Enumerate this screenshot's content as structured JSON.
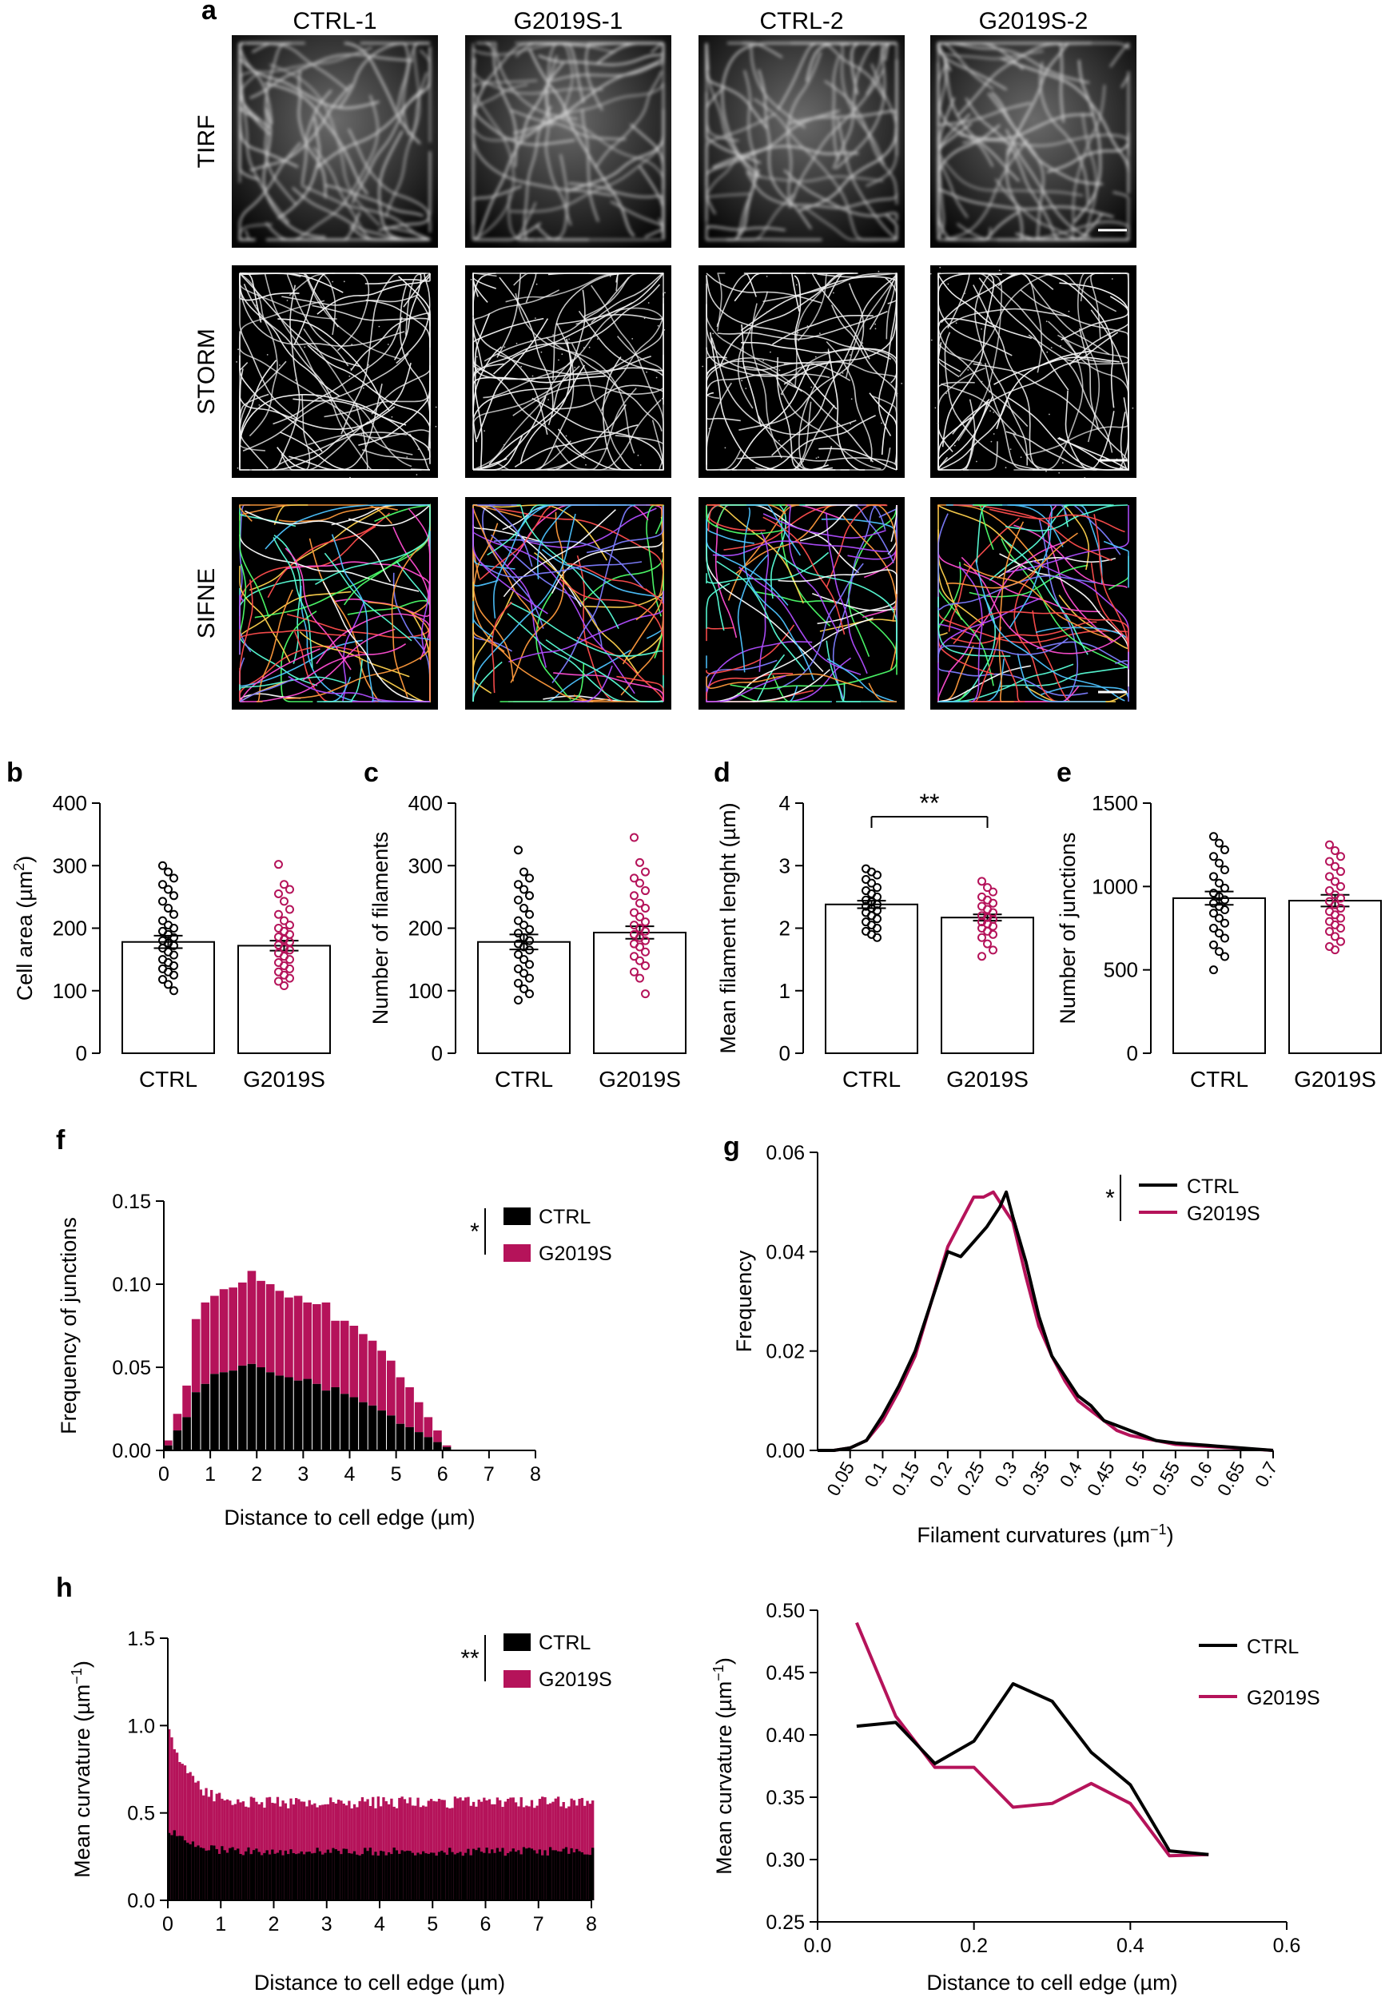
{
  "colors": {
    "ctrl": "#000000",
    "g2019s": "#B5135A",
    "tile_bg": "#000000"
  },
  "panel_letters": {
    "a": "a",
    "b": "b",
    "c": "c",
    "d": "d",
    "e": "e",
    "f": "f",
    "g": "g",
    "h": "h"
  },
  "panel_a": {
    "column_labels": [
      "CTRL-1",
      "G2019S-1",
      "CTRL-2",
      "G2019S-2"
    ],
    "row_labels": [
      "TIRF",
      "STORM",
      "SIFNE"
    ],
    "filament_palette": [
      "#ff4d4d",
      "#ffd24d",
      "#4dff6a",
      "#4dc3ff",
      "#b04dff",
      "#ff4dd2",
      "#ffffff",
      "#ff9a3c",
      "#7d7dff",
      "#59ffd8"
    ]
  },
  "chart_data": [
    {
      "id": "b",
      "type": "bar",
      "categories": [
        "CTRL",
        "G2019S"
      ],
      "values": [
        178,
        172
      ],
      "sem": [
        10,
        8
      ],
      "ylabel": "Cell area (µm",
      "ylabel_sup": "2",
      "ylabel_close": ")",
      "ylim": [
        0,
        400
      ],
      "yticks": [
        0,
        100,
        200,
        300,
        400
      ],
      "points": {
        "CTRL": [
          300,
          290,
          280,
          270,
          262,
          252,
          243,
          232,
          222,
          212,
          205,
          200,
          195,
          190,
          185,
          180,
          176,
          172,
          168,
          162,
          157,
          150,
          145,
          140,
          135,
          130,
          125,
          118,
          110,
          100
        ],
        "G2019S": [
          302,
          270,
          262,
          255,
          243,
          230,
          222,
          212,
          205,
          200,
          195,
          190,
          186,
          182,
          178,
          173,
          168,
          165,
          160,
          155,
          150,
          145,
          140,
          135,
          130,
          125,
          120,
          115,
          108
        ]
      }
    },
    {
      "id": "c",
      "type": "bar",
      "categories": [
        "CTRL",
        "G2019S"
      ],
      "values": [
        178,
        193
      ],
      "sem": [
        12,
        10
      ],
      "ylabel": "Number of filaments",
      "ylim": [
        0,
        400
      ],
      "yticks": [
        0,
        100,
        200,
        300,
        400
      ],
      "points": {
        "CTRL": [
          325,
          290,
          280,
          270,
          262,
          252,
          245,
          232,
          222,
          212,
          205,
          198,
          192,
          185,
          180,
          175,
          170,
          165,
          158,
          150,
          142,
          135,
          128,
          120,
          112,
          103,
          95,
          85
        ],
        "G2019S": [
          345,
          305,
          290,
          280,
          272,
          260,
          252,
          240,
          232,
          225,
          218,
          210,
          205,
          200,
          195,
          190,
          185,
          180,
          175,
          170,
          162,
          155,
          148,
          140,
          130,
          120,
          95
        ]
      }
    },
    {
      "id": "d",
      "type": "bar",
      "categories": [
        "CTRL",
        "G2019S"
      ],
      "values": [
        2.38,
        2.17
      ],
      "sem": [
        0.06,
        0.05
      ],
      "ylabel": "Mean filament lenght (µm)",
      "ylim": [
        0,
        4
      ],
      "yticks": [
        0,
        1,
        2,
        3,
        4
      ],
      "significance": "**",
      "points": {
        "CTRL": [
          2.95,
          2.9,
          2.85,
          2.78,
          2.72,
          2.65,
          2.6,
          2.55,
          2.5,
          2.45,
          2.42,
          2.38,
          2.35,
          2.32,
          2.28,
          2.25,
          2.2,
          2.15,
          2.1,
          2.05,
          2.0,
          1.95,
          1.9,
          1.85
        ],
        "G2019S": [
          2.75,
          2.65,
          2.58,
          2.5,
          2.45,
          2.4,
          2.35,
          2.3,
          2.25,
          2.2,
          2.17,
          2.14,
          2.1,
          2.07,
          2.03,
          2.0,
          1.95,
          1.9,
          1.85,
          1.75,
          1.65,
          1.55
        ]
      }
    },
    {
      "id": "e",
      "type": "bar",
      "categories": [
        "CTRL",
        "G2019S"
      ],
      "values": [
        930,
        915
      ],
      "sem": [
        40,
        35
      ],
      "ylabel": "Number of junctions",
      "ylim": [
        0,
        1500
      ],
      "yticks": [
        0,
        500,
        1000,
        1500
      ],
      "points": {
        "CTRL": [
          1300,
          1260,
          1220,
          1180,
          1140,
          1100,
          1060,
          1020,
          990,
          960,
          940,
          920,
          900,
          880,
          860,
          840,
          810,
          780,
          750,
          720,
          690,
          650,
          610,
          580,
          500
        ],
        "G2019S": [
          1250,
          1215,
          1180,
          1150,
          1120,
          1090,
          1060,
          1030,
          1000,
          975,
          950,
          930,
          910,
          890,
          870,
          850,
          830,
          810,
          790,
          770,
          750,
          730,
          700,
          670,
          640,
          620
        ]
      }
    },
    {
      "id": "f",
      "type": "bar",
      "stacked": true,
      "xlabel": "Distance to cell edge (µm)",
      "ylabel": "Frequency of junctions",
      "xlim": [
        0,
        8
      ],
      "xticks": [
        0,
        1,
        2,
        3,
        4,
        5,
        6,
        7,
        8
      ],
      "ylim": [
        0,
        0.15
      ],
      "yticks": [
        0,
        0.05,
        0.1,
        0.15
      ],
      "ytick_labels": [
        "0.00",
        "0.05",
        "0.10",
        "0.15"
      ],
      "bin_width": 0.2,
      "legend": [
        "CTRL",
        "G2019S"
      ],
      "significance": "*",
      "series": [
        {
          "name": "CTRL",
          "x": [
            0.2,
            0.4,
            0.6,
            0.8,
            1.0,
            1.2,
            1.4,
            1.6,
            1.8,
            2.0,
            2.2,
            2.4,
            2.6,
            2.8,
            3.0,
            3.2,
            3.4,
            3.6,
            3.8,
            4.0,
            4.2,
            4.4,
            4.6,
            4.8,
            5.0,
            5.2,
            5.4,
            5.6,
            5.8,
            6.0,
            6.2
          ],
          "values": [
            0.003,
            0.012,
            0.02,
            0.035,
            0.04,
            0.046,
            0.047,
            0.048,
            0.051,
            0.052,
            0.05,
            0.047,
            0.045,
            0.044,
            0.042,
            0.043,
            0.04,
            0.036,
            0.038,
            0.034,
            0.032,
            0.029,
            0.027,
            0.024,
            0.021,
            0.016,
            0.014,
            0.011,
            0.008,
            0.005,
            0.002
          ]
        },
        {
          "name": "G2019S",
          "x": [
            0.2,
            0.4,
            0.6,
            0.8,
            1.0,
            1.2,
            1.4,
            1.6,
            1.8,
            2.0,
            2.2,
            2.4,
            2.6,
            2.8,
            3.0,
            3.2,
            3.4,
            3.6,
            3.8,
            4.0,
            4.2,
            4.4,
            4.6,
            4.8,
            5.0,
            5.2,
            5.4,
            5.6,
            5.8,
            6.0,
            6.2
          ],
          "values": [
            0.003,
            0.01,
            0.019,
            0.044,
            0.049,
            0.047,
            0.05,
            0.05,
            0.05,
            0.056,
            0.052,
            0.053,
            0.051,
            0.048,
            0.051,
            0.046,
            0.048,
            0.053,
            0.04,
            0.044,
            0.043,
            0.041,
            0.039,
            0.036,
            0.033,
            0.028,
            0.024,
            0.018,
            0.012,
            0.007,
            0.001
          ]
        }
      ]
    },
    {
      "id": "g",
      "type": "line",
      "xlabel": "Filament curvatures (µm",
      "xlabel_sup": "−1",
      "xlabel_close": ")",
      "ylabel": "Frequency",
      "xlim": [
        0,
        0.7
      ],
      "ylim": [
        0,
        0.06
      ],
      "xticks": [
        0.05,
        0.1,
        0.15,
        0.2,
        0.25,
        0.3,
        0.35,
        0.4,
        0.45,
        0.5,
        0.55,
        0.6,
        0.65,
        0.7
      ],
      "yticks": [
        0,
        0.02,
        0.04,
        0.06
      ],
      "ytick_labels": [
        "0.00",
        "0.02",
        "0.04",
        "0.06"
      ],
      "legend": [
        "CTRL",
        "G2019S"
      ],
      "significance": "*",
      "series": [
        {
          "name": "CTRL",
          "x": [
            0.0,
            0.025,
            0.05,
            0.075,
            0.1,
            0.125,
            0.15,
            0.175,
            0.2,
            0.22,
            0.24,
            0.26,
            0.28,
            0.29,
            0.3,
            0.32,
            0.34,
            0.36,
            0.38,
            0.4,
            0.42,
            0.44,
            0.46,
            0.48,
            0.5,
            0.52,
            0.55,
            0.6,
            0.65,
            0.7
          ],
          "values": [
            0.0,
            0.0,
            0.0005,
            0.002,
            0.007,
            0.013,
            0.02,
            0.03,
            0.04,
            0.039,
            0.042,
            0.045,
            0.049,
            0.052,
            0.047,
            0.038,
            0.027,
            0.019,
            0.015,
            0.011,
            0.009,
            0.006,
            0.005,
            0.004,
            0.003,
            0.002,
            0.0015,
            0.001,
            0.0005,
            0.0
          ]
        },
        {
          "name": "G2019S",
          "x": [
            0.0,
            0.025,
            0.05,
            0.075,
            0.1,
            0.125,
            0.15,
            0.175,
            0.2,
            0.22,
            0.24,
            0.255,
            0.27,
            0.29,
            0.3,
            0.32,
            0.34,
            0.36,
            0.38,
            0.4,
            0.42,
            0.44,
            0.46,
            0.48,
            0.5,
            0.52,
            0.55,
            0.6,
            0.65,
            0.7
          ],
          "values": [
            0.0,
            0.0,
            0.0005,
            0.002,
            0.006,
            0.012,
            0.019,
            0.03,
            0.041,
            0.046,
            0.051,
            0.051,
            0.052,
            0.048,
            0.046,
            0.035,
            0.025,
            0.019,
            0.014,
            0.01,
            0.008,
            0.006,
            0.004,
            0.003,
            0.0025,
            0.002,
            0.0012,
            0.0008,
            0.0004,
            0.0
          ]
        }
      ]
    },
    {
      "id": "h",
      "type": "bar",
      "stacked": true,
      "xlabel": "Distance to cell edge (µm)",
      "ylabel": "Mean curvature (µm",
      "ylabel_sup": "−1",
      "ylabel_close": ")",
      "xlim": [
        0,
        8
      ],
      "xticks": [
        0,
        1,
        2,
        3,
        4,
        5,
        6,
        7,
        8
      ],
      "ylim": [
        0,
        1.5
      ],
      "yticks": [
        0,
        0.5,
        1.0,
        1.5
      ],
      "ytick_labels": [
        "0.0",
        "0.5",
        "1.0",
        "1.5"
      ],
      "bin_width": 0.05,
      "legend": [
        "CTRL",
        "G2019S"
      ],
      "significance": "**",
      "series": [
        {
          "name": "CTRL",
          "x_start": 0.0,
          "x_step": 0.05,
          "profile": "ctrl_curvature",
          "values_summary": {
            "edge_value": 0.41,
            "plateau_value": 0.28
          }
        },
        {
          "name": "G2019S",
          "x_start": 0.0,
          "x_step": 0.05,
          "profile": "g2019s_curvature",
          "values_summary": {
            "edge_value": 1.0,
            "plateau_value": 0.56
          }
        }
      ]
    },
    {
      "id": "h2",
      "type": "line",
      "xlabel": "Distance to cell edge (µm)",
      "ylabel": "Mean curvature (µm",
      "ylabel_sup": "−1",
      "ylabel_close": ")",
      "xlim": [
        0.0,
        0.6
      ],
      "ylim": [
        0.25,
        0.5
      ],
      "xticks": [
        0.0,
        0.2,
        0.4,
        0.6
      ],
      "xtick_labels": [
        "0.0",
        "0.2",
        "0.4",
        "0.6"
      ],
      "yticks": [
        0.25,
        0.3,
        0.35,
        0.4,
        0.45,
        0.5
      ],
      "ytick_labels": [
        "0.25",
        "0.30",
        "0.35",
        "0.40",
        "0.45",
        "0.50"
      ],
      "legend": [
        "CTRL",
        "G2019S"
      ],
      "series": [
        {
          "name": "CTRL",
          "x": [
            0.05,
            0.1,
            0.15,
            0.2,
            0.25,
            0.3,
            0.35,
            0.4,
            0.45,
            0.5
          ],
          "values": [
            0.407,
            0.41,
            0.377,
            0.395,
            0.441,
            0.427,
            0.386,
            0.36,
            0.307,
            0.304
          ]
        },
        {
          "name": "G2019S",
          "x": [
            0.05,
            0.1,
            0.15,
            0.2,
            0.25,
            0.3,
            0.35,
            0.4,
            0.45,
            0.5
          ],
          "values": [
            0.49,
            0.415,
            0.374,
            0.374,
            0.342,
            0.345,
            0.361,
            0.345,
            0.303,
            0.304
          ]
        }
      ]
    }
  ]
}
